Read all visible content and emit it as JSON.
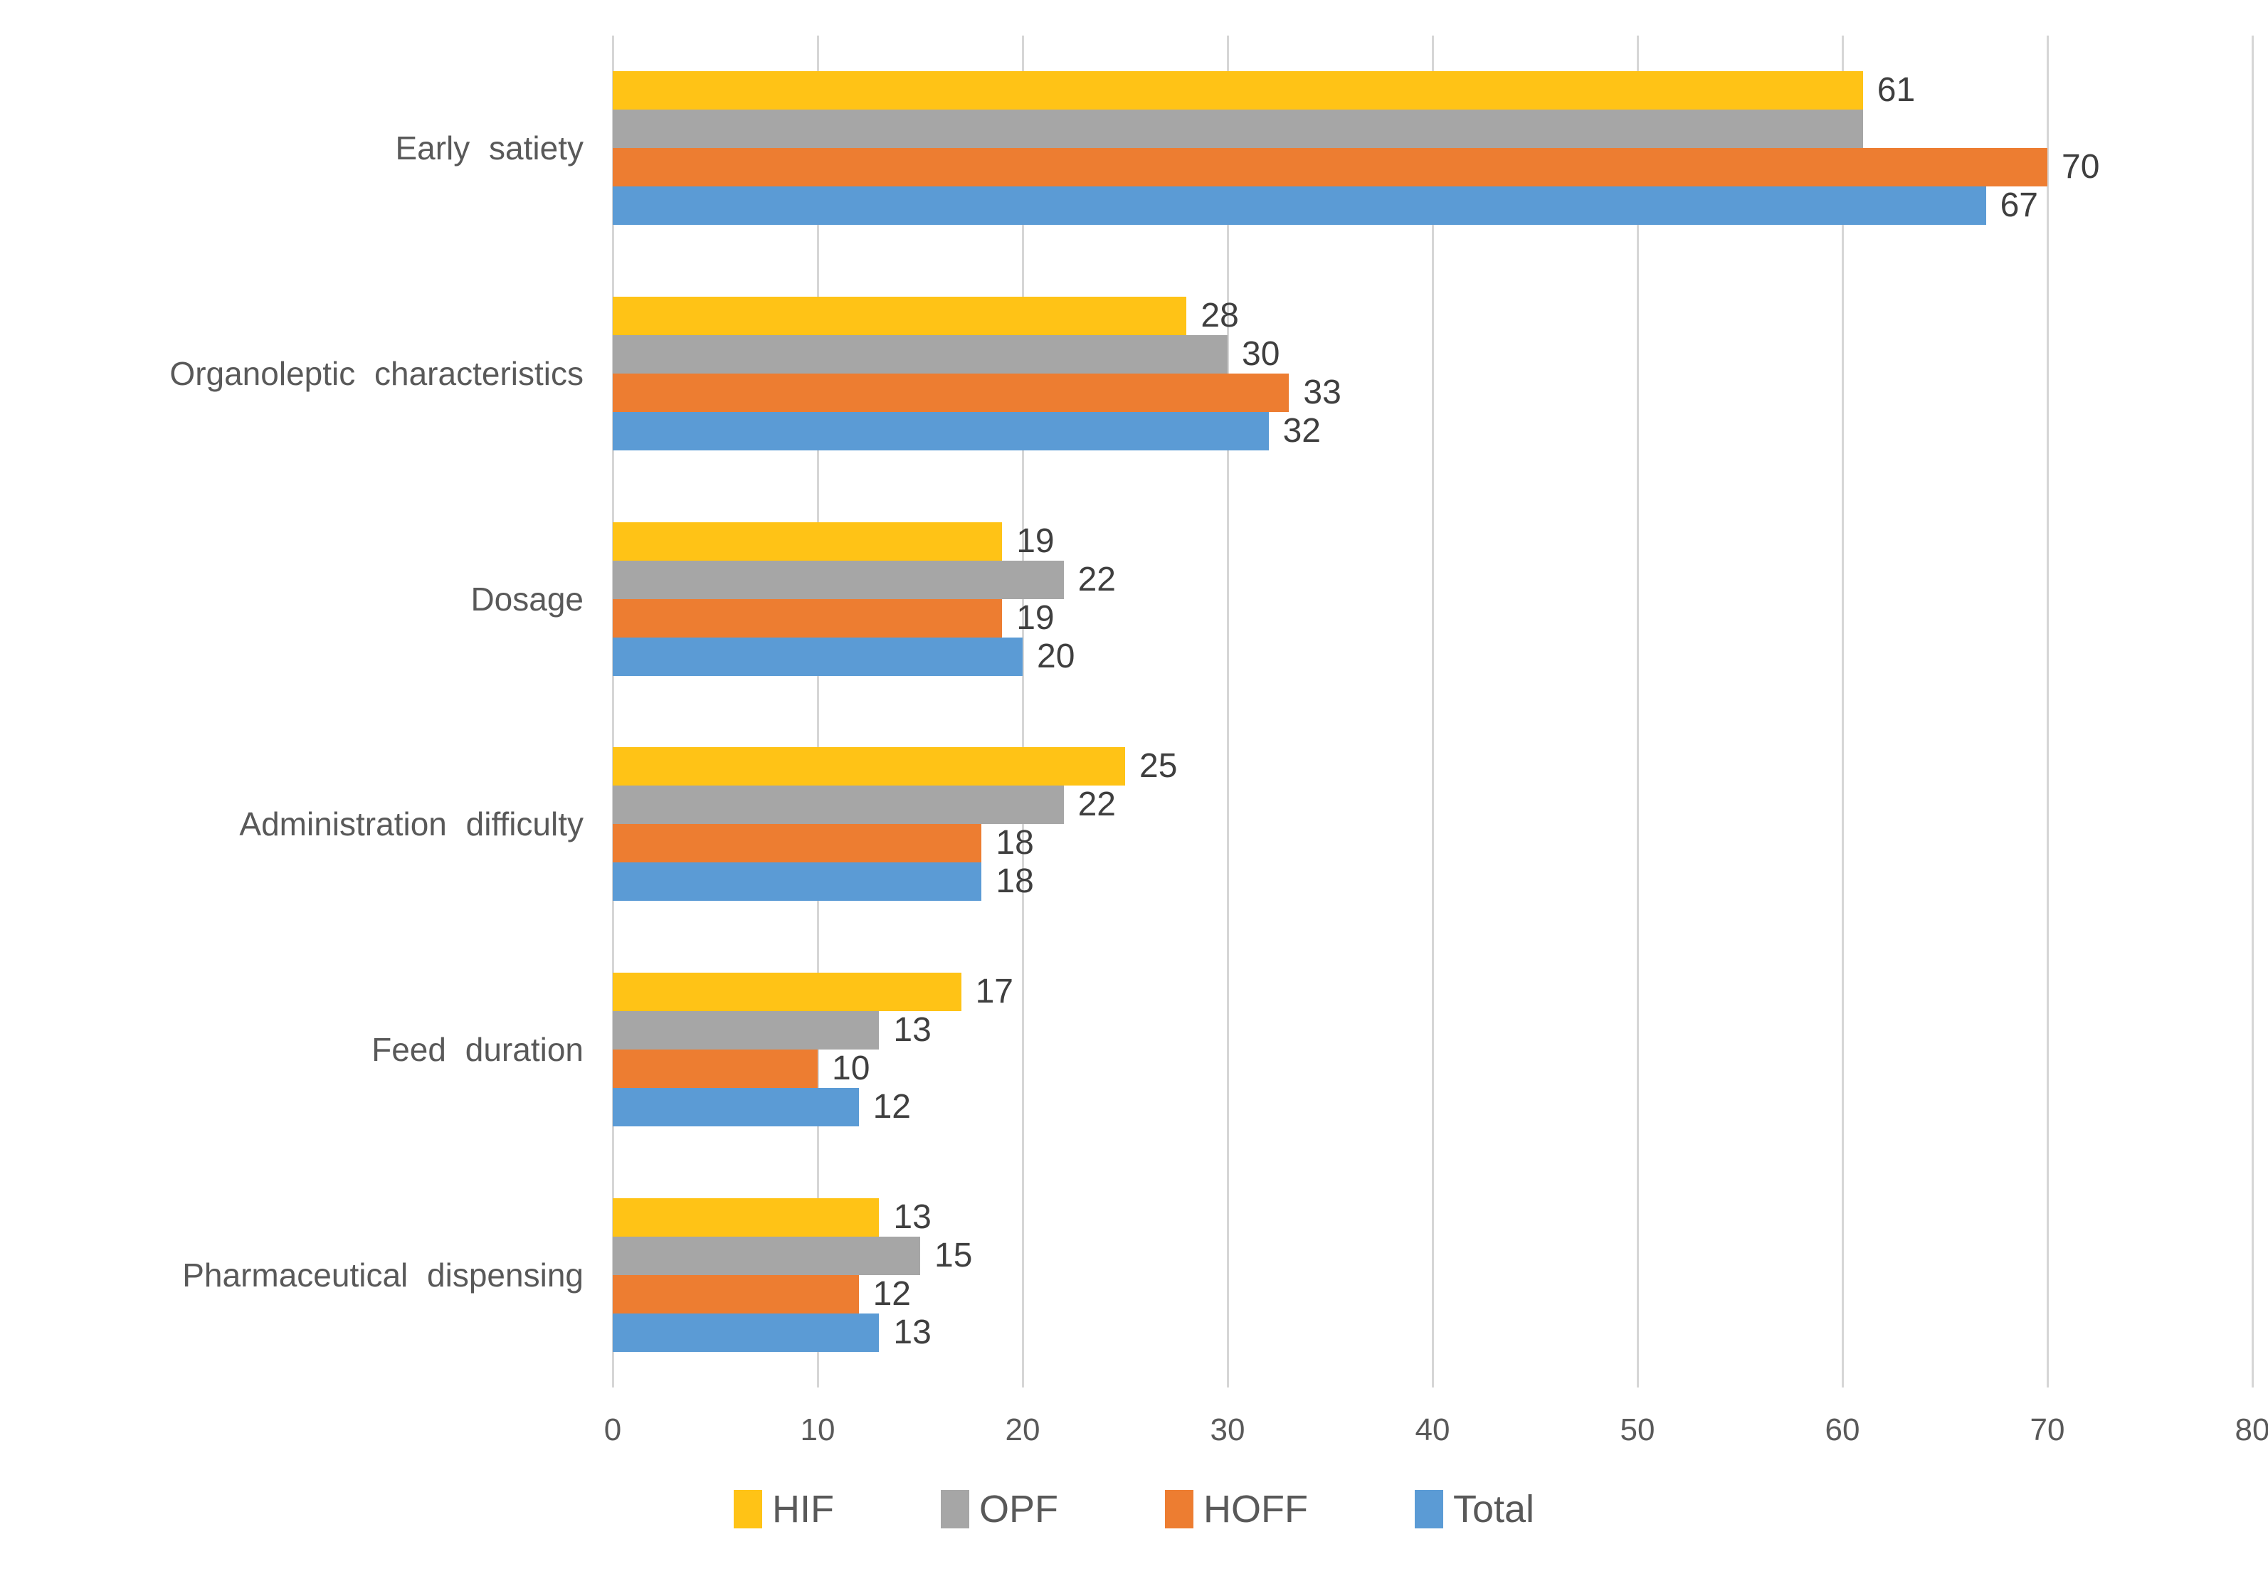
{
  "chart_data": {
    "type": "bar",
    "orientation": "horizontal",
    "title": "",
    "categories": [
      "Early satiety",
      "Organoleptic characteristics",
      "Dosage",
      "Administration difficulty",
      "Feed duration",
      "Pharmaceutical dispensing"
    ],
    "series": [
      {
        "name": "HIF",
        "color": "#FFC316",
        "values": [
          61,
          28,
          19,
          25,
          17,
          13
        ],
        "labels": [
          "61",
          "28",
          "19",
          "25",
          "17",
          "13"
        ]
      },
      {
        "name": "OPF",
        "color": "#A6A6A6",
        "values": [
          61,
          30,
          22,
          22,
          13,
          15
        ],
        "labels": [
          "",
          "30",
          "22",
          "22",
          "13",
          "15"
        ]
      },
      {
        "name": "HOFF",
        "color": "#ED7D31",
        "values": [
          70,
          33,
          19,
          18,
          10,
          12
        ],
        "labels": [
          "70",
          "33",
          "19",
          "18",
          "10",
          "12"
        ]
      },
      {
        "name": "Total",
        "color": "#5B9BD5",
        "values": [
          67,
          32,
          20,
          18,
          12,
          13
        ],
        "labels": [
          "67",
          "32",
          "20",
          "18",
          "12",
          "13"
        ]
      }
    ],
    "xlim": [
      0,
      80
    ],
    "x_ticks": [
      "0",
      "10",
      "20",
      "30",
      "40",
      "50",
      "60",
      "70",
      "80"
    ],
    "grid": true,
    "gridline_color": "#D6D6D6",
    "legend_position": "bottom",
    "legend": [
      "HIF",
      "OPF",
      "HOFF",
      "Total"
    ],
    "label_color": "#3F3F3F",
    "axis_text_color": "#595959"
  }
}
